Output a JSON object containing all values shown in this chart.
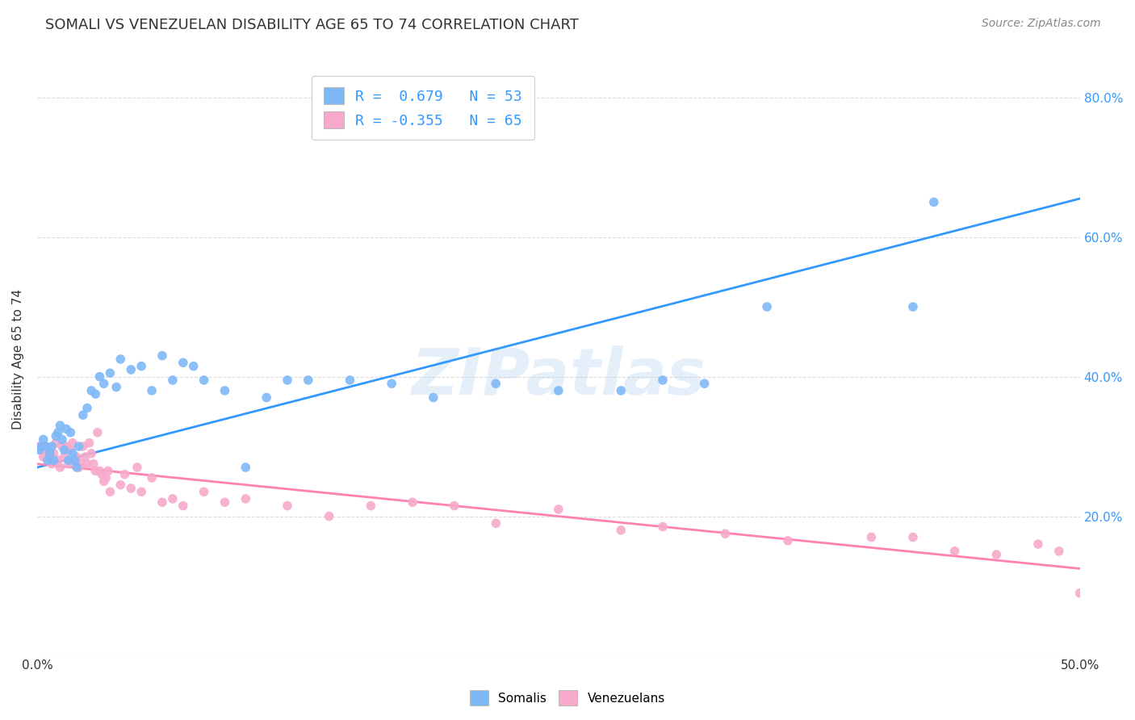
{
  "title": "SOMALI VS VENEZUELAN DISABILITY AGE 65 TO 74 CORRELATION CHART",
  "source": "Source: ZipAtlas.com",
  "ylabel": "Disability Age 65 to 74",
  "xlim": [
    0.0,
    0.5
  ],
  "ylim": [
    0.0,
    0.85
  ],
  "xticks": [
    0.0,
    0.1,
    0.2,
    0.3,
    0.4,
    0.5
  ],
  "yticks": [
    0.2,
    0.4,
    0.6,
    0.8
  ],
  "ytick_labels": [
    "20.0%",
    "40.0%",
    "60.0%",
    "80.0%"
  ],
  "xtick_labels": [
    "0.0%",
    "",
    "",
    "",
    "",
    "50.0%"
  ],
  "somali_R": 0.679,
  "somali_N": 53,
  "venezuelan_R": -0.355,
  "venezuelan_N": 65,
  "somali_color": "#7EB8F7",
  "venezuelan_color": "#F7AACB",
  "somali_line_color": "#3399FF",
  "venezuelan_line_color": "#FF82B0",
  "background_color": "#FFFFFF",
  "grid_color": "#DDDDDD",
  "watermark": "ZIPatlas",
  "somali_x": [
    0.001,
    0.002,
    0.003,
    0.004,
    0.005,
    0.006,
    0.007,
    0.008,
    0.009,
    0.01,
    0.011,
    0.012,
    0.013,
    0.014,
    0.015,
    0.016,
    0.017,
    0.018,
    0.019,
    0.02,
    0.022,
    0.024,
    0.026,
    0.028,
    0.03,
    0.032,
    0.035,
    0.038,
    0.04,
    0.045,
    0.05,
    0.055,
    0.06,
    0.065,
    0.07,
    0.075,
    0.08,
    0.09,
    0.1,
    0.11,
    0.12,
    0.13,
    0.15,
    0.17,
    0.19,
    0.22,
    0.25,
    0.28,
    0.3,
    0.32,
    0.35,
    0.42,
    0.43
  ],
  "somali_y": [
    0.295,
    0.3,
    0.31,
    0.3,
    0.28,
    0.29,
    0.3,
    0.28,
    0.315,
    0.32,
    0.33,
    0.31,
    0.295,
    0.325,
    0.28,
    0.32,
    0.29,
    0.28,
    0.27,
    0.3,
    0.345,
    0.355,
    0.38,
    0.375,
    0.4,
    0.39,
    0.405,
    0.385,
    0.425,
    0.41,
    0.415,
    0.38,
    0.43,
    0.395,
    0.42,
    0.415,
    0.395,
    0.38,
    0.27,
    0.37,
    0.395,
    0.395,
    0.395,
    0.39,
    0.37,
    0.39,
    0.38,
    0.38,
    0.395,
    0.39,
    0.5,
    0.5,
    0.65
  ],
  "venezuelan_x": [
    0.001,
    0.002,
    0.003,
    0.004,
    0.005,
    0.006,
    0.007,
    0.008,
    0.009,
    0.01,
    0.011,
    0.012,
    0.013,
    0.014,
    0.015,
    0.016,
    0.017,
    0.018,
    0.019,
    0.02,
    0.021,
    0.022,
    0.023,
    0.024,
    0.025,
    0.026,
    0.027,
    0.028,
    0.029,
    0.03,
    0.031,
    0.032,
    0.033,
    0.034,
    0.035,
    0.04,
    0.042,
    0.045,
    0.048,
    0.05,
    0.055,
    0.06,
    0.065,
    0.07,
    0.08,
    0.09,
    0.1,
    0.12,
    0.14,
    0.16,
    0.18,
    0.2,
    0.22,
    0.25,
    0.28,
    0.3,
    0.33,
    0.36,
    0.4,
    0.42,
    0.44,
    0.46,
    0.48,
    0.49,
    0.5
  ],
  "venezuelan_y": [
    0.3,
    0.295,
    0.285,
    0.3,
    0.295,
    0.285,
    0.275,
    0.29,
    0.305,
    0.28,
    0.27,
    0.3,
    0.285,
    0.3,
    0.275,
    0.295,
    0.305,
    0.28,
    0.285,
    0.27,
    0.275,
    0.3,
    0.285,
    0.275,
    0.305,
    0.29,
    0.275,
    0.265,
    0.32,
    0.265,
    0.26,
    0.25,
    0.255,
    0.265,
    0.235,
    0.245,
    0.26,
    0.24,
    0.27,
    0.235,
    0.255,
    0.22,
    0.225,
    0.215,
    0.235,
    0.22,
    0.225,
    0.215,
    0.2,
    0.215,
    0.22,
    0.215,
    0.19,
    0.21,
    0.18,
    0.185,
    0.175,
    0.165,
    0.17,
    0.17,
    0.15,
    0.145,
    0.16,
    0.15,
    0.09
  ],
  "somali_line_x0": 0.0,
  "somali_line_y0": 0.27,
  "somali_line_x1": 0.5,
  "somali_line_y1": 0.655,
  "venezuelan_line_x0": 0.0,
  "venezuelan_line_y0": 0.275,
  "venezuelan_line_x1": 0.5,
  "venezuelan_line_y1": 0.125
}
